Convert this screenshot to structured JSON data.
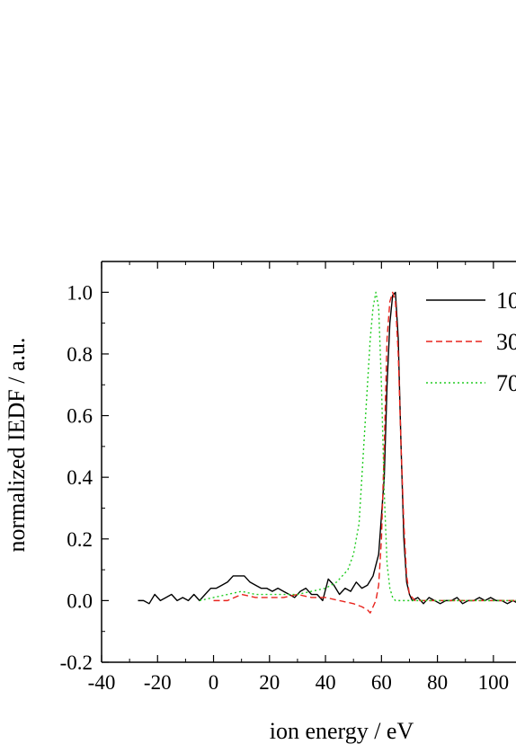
{
  "chart_data": {
    "type": "line",
    "title": "",
    "xlabel": "ion energy / eV",
    "ylabel": "normalized IEDF / a.u.",
    "xlim": [
      -40,
      110
    ],
    "ylim": [
      -0.2,
      1.1
    ],
    "xticks": [
      -40,
      -20,
      0,
      20,
      40,
      60,
      80,
      100
    ],
    "yticks": [
      -0.2,
      0.0,
      0.2,
      0.4,
      0.6,
      0.8,
      1.0
    ],
    "ytick_labels": [
      "-0.2",
      "0.0",
      "0.2",
      "0.4",
      "0.6",
      "0.8",
      "1.0"
    ],
    "grid": false,
    "legend_position": "top-right",
    "series": [
      {
        "name": "10",
        "color": "#000000",
        "dash": "solid",
        "x": [
          -27,
          -25,
          -23,
          -21,
          -19,
          -17,
          -15,
          -13,
          -11,
          -9,
          -7,
          -5,
          -3,
          -1,
          1,
          3,
          5,
          7,
          9,
          11,
          13,
          15,
          17,
          19,
          21,
          23,
          25,
          27,
          29,
          31,
          33,
          35,
          37,
          39,
          41,
          43,
          45,
          47,
          49,
          51,
          53,
          55,
          57,
          59,
          61,
          62,
          63,
          64,
          65,
          66,
          67,
          68,
          69,
          70,
          71,
          73,
          75,
          77,
          79,
          81,
          83,
          85,
          87,
          89,
          91,
          93,
          95,
          97,
          99,
          101,
          103,
          105,
          107,
          109,
          110
        ],
        "y": [
          0.0,
          0.0,
          -0.01,
          0.02,
          0.0,
          0.01,
          0.02,
          0.0,
          0.01,
          0.0,
          0.02,
          0.0,
          0.02,
          0.04,
          0.04,
          0.05,
          0.06,
          0.08,
          0.08,
          0.08,
          0.06,
          0.05,
          0.04,
          0.04,
          0.03,
          0.04,
          0.03,
          0.02,
          0.01,
          0.03,
          0.04,
          0.02,
          0.02,
          0.0,
          0.07,
          0.05,
          0.02,
          0.04,
          0.03,
          0.06,
          0.04,
          0.05,
          0.08,
          0.15,
          0.4,
          0.7,
          0.9,
          0.99,
          1.0,
          0.85,
          0.5,
          0.2,
          0.06,
          0.02,
          0.0,
          0.01,
          -0.01,
          0.01,
          0.0,
          -0.01,
          0.0,
          0.0,
          0.01,
          -0.01,
          0.0,
          0.0,
          0.01,
          0.0,
          0.01,
          0.0,
          0.0,
          -0.01,
          0.0,
          -0.01,
          -0.01
        ]
      },
      {
        "name": "30",
        "color": "#e8231c",
        "dash": "dashed",
        "x": [
          0,
          5,
          10,
          15,
          20,
          25,
          30,
          35,
          40,
          45,
          50,
          53,
          55,
          56,
          57,
          58,
          59,
          60,
          61,
          62,
          63,
          64,
          65,
          66,
          67,
          68,
          69,
          70,
          72,
          75,
          80,
          85,
          90,
          95,
          100,
          105,
          110
        ],
        "y": [
          0.0,
          0.0,
          0.02,
          0.01,
          0.01,
          0.01,
          0.02,
          0.01,
          0.01,
          0.0,
          -0.01,
          -0.02,
          -0.03,
          -0.04,
          -0.02,
          0.0,
          0.05,
          0.2,
          0.5,
          0.85,
          0.97,
          1.0,
          0.97,
          0.8,
          0.5,
          0.25,
          0.08,
          0.02,
          0.0,
          0.0,
          0.0,
          0.0,
          0.0,
          0.0,
          0.0,
          0.0,
          0.0
        ]
      },
      {
        "name": "70",
        "color": "#22cc22",
        "dash": "dotted",
        "x": [
          -5,
          0,
          5,
          10,
          15,
          20,
          25,
          30,
          35,
          40,
          44,
          48,
          50,
          52,
          53,
          54,
          55,
          56,
          57,
          58,
          59,
          60,
          61,
          62,
          63,
          64,
          65,
          67,
          70,
          75,
          80,
          90,
          100,
          110
        ],
        "y": [
          0.0,
          0.01,
          0.02,
          0.03,
          0.02,
          0.02,
          0.02,
          0.02,
          0.03,
          0.04,
          0.06,
          0.1,
          0.15,
          0.25,
          0.4,
          0.55,
          0.7,
          0.85,
          0.95,
          1.0,
          0.95,
          0.7,
          0.35,
          0.12,
          0.04,
          0.01,
          0.0,
          0.0,
          0.0,
          0.0,
          0.0,
          0.0,
          0.0,
          0.0
        ]
      }
    ]
  }
}
